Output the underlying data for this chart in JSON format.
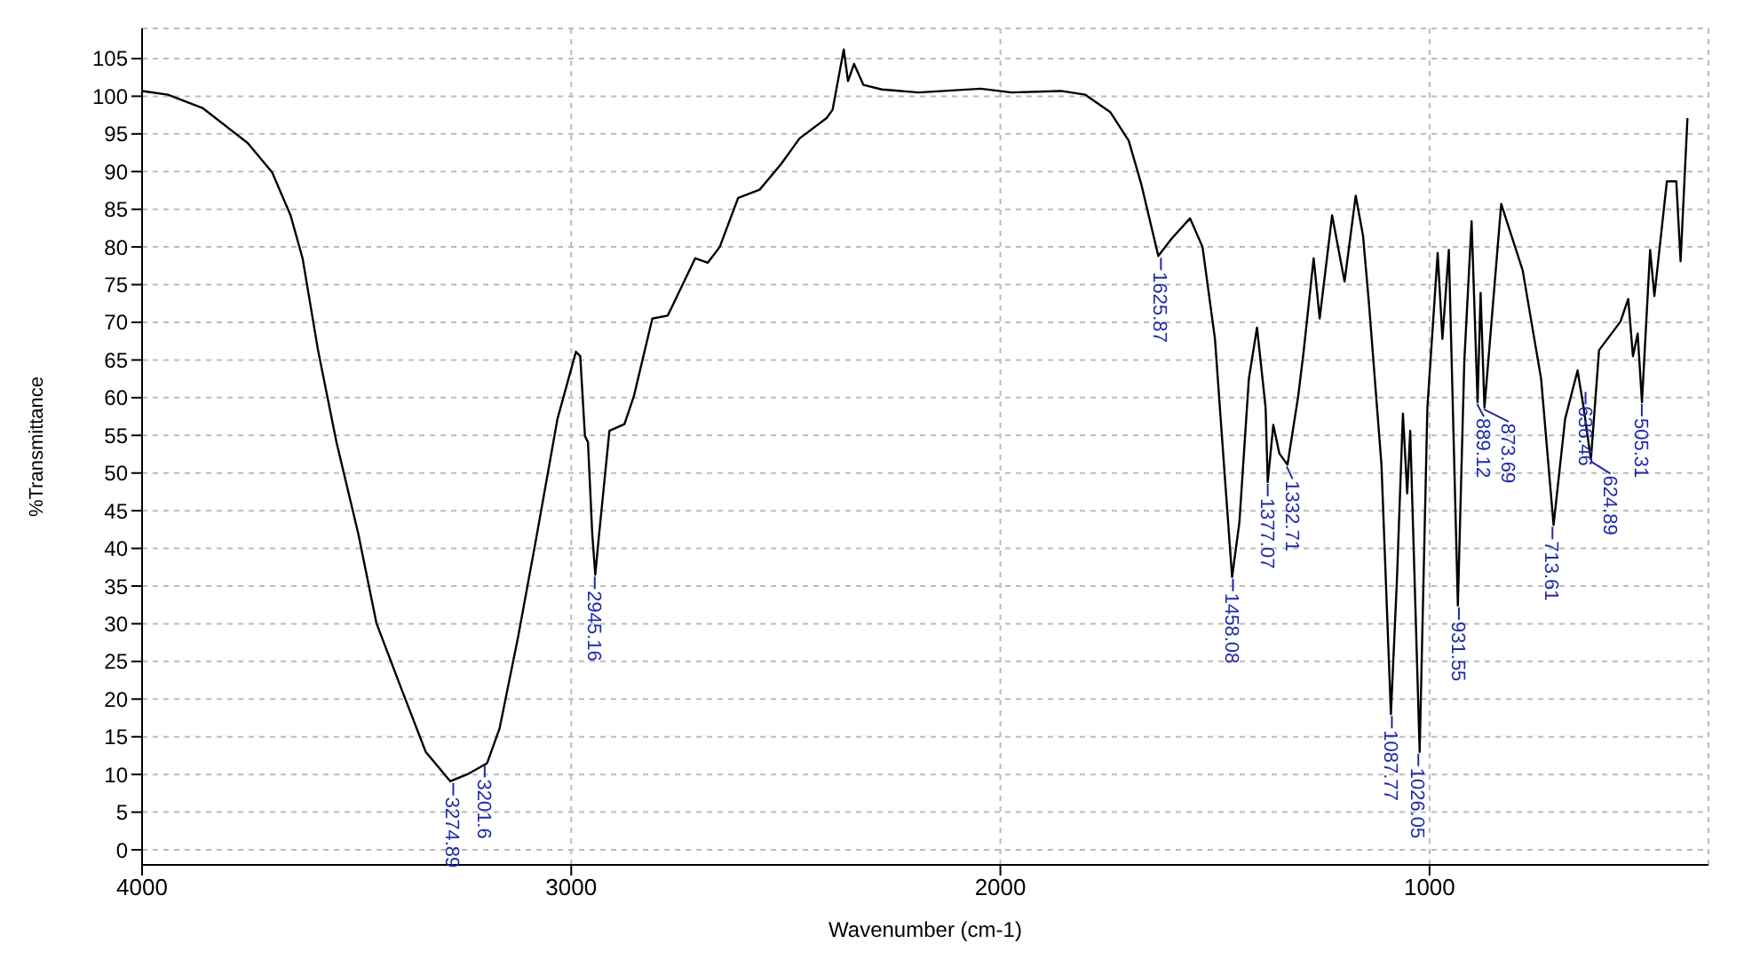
{
  "chart_data": {
    "type": "line",
    "xlabel": "Wavenumber (cm-1)",
    "ylabel": "%Transmittance",
    "xlim": [
      4000,
      350
    ],
    "xticks": [
      4000,
      3000,
      2000,
      1000
    ],
    "ylim": [
      -2,
      109
    ],
    "yticks": [
      0,
      5,
      10,
      15,
      20,
      25,
      30,
      35,
      40,
      45,
      50,
      55,
      60,
      65,
      70,
      75,
      80,
      85,
      90,
      95,
      100,
      105
    ],
    "grid": true,
    "marker": "none",
    "line_style": "solid",
    "x": [
      4000,
      3940,
      3858,
      3754,
      3697,
      3654,
      3626,
      3590,
      3547,
      3496,
      3454,
      3396,
      3339,
      3282,
      3239,
      3196,
      3167,
      3124,
      3082,
      3032,
      2989,
      2979,
      2968,
      2961,
      2951,
      2944,
      2935,
      2911,
      2876,
      2854,
      2811,
      2775,
      2711,
      2682,
      2654,
      2611,
      2561,
      2511,
      2468,
      2405,
      2391,
      2365,
      2355,
      2341,
      2319,
      2276,
      2190,
      2046,
      1974,
      1859,
      1802,
      1744,
      1701,
      1672,
      1632,
      1601,
      1558,
      1529,
      1500,
      1479,
      1460,
      1443,
      1421,
      1402,
      1382,
      1377,
      1364,
      1350,
      1331,
      1306,
      1293,
      1270,
      1256,
      1227,
      1198,
      1172,
      1155,
      1141,
      1112,
      1090,
      1076,
      1062,
      1052,
      1045,
      1023,
      1005,
      981,
      970,
      955,
      934,
      919,
      902,
      888,
      881,
      872,
      833,
      783,
      740,
      711,
      684,
      655,
      641,
      624,
      605,
      555,
      537,
      526,
      515,
      505,
      486,
      476,
      447,
      425,
      415,
      399
    ],
    "series": [
      {
        "color": "#000000",
        "values": [
          100.7,
          100.2,
          98.4,
          93.8,
          89.9,
          84.2,
          78.5,
          66.3,
          54.1,
          41.9,
          30.1,
          21.4,
          13,
          9.1,
          10.1,
          11.5,
          16.1,
          28.2,
          41.2,
          57.2,
          66.1,
          65.5,
          54.9,
          54.1,
          41.9,
          36.5,
          41.9,
          55.6,
          56.5,
          60.2,
          70.5,
          70.9,
          78.5,
          77.9,
          80,
          86.5,
          87.6,
          91,
          94.4,
          97.1,
          98.2,
          106.2,
          102,
          104.3,
          101.5,
          100.9,
          100.5,
          101,
          100.5,
          100.7,
          100.2,
          97.9,
          94.1,
          88.4,
          78.8,
          81.1,
          83.8,
          80,
          67.8,
          51.1,
          36.2,
          43.5,
          62.5,
          69.3,
          58.7,
          48.8,
          56.4,
          52.6,
          51.1,
          60.2,
          66.3,
          78.5,
          70.5,
          84.2,
          75.4,
          86.8,
          81.5,
          72.4,
          51.1,
          18,
          35.8,
          57.9,
          47.3,
          55.6,
          13,
          58.7,
          79.2,
          67.8,
          79.6,
          32.4,
          64.8,
          83.4,
          59.4,
          73.9,
          58.7,
          85.7,
          76.9,
          62.5,
          43.1,
          57.2,
          63.6,
          58.7,
          51.8,
          66.3,
          70.1,
          73.1,
          65.5,
          68.5,
          59.4,
          79.6,
          73.5,
          88.7,
          88.7,
          78.1,
          97.1
        ]
      }
    ],
    "annotations": [
      {
        "text": "3274.89",
        "x": 3274.89,
        "y": 9.1
      },
      {
        "text": "3201.6",
        "x": 3201.6,
        "y": 11.5
      },
      {
        "text": "2945.16",
        "x": 2945.16,
        "y": 36.5
      },
      {
        "text": "1625.87",
        "x": 1625.87,
        "y": 78.8
      },
      {
        "text": "1458.08",
        "x": 1458.08,
        "y": 36.2
      },
      {
        "text": "1377.07",
        "x": 1377.07,
        "y": 48.8
      },
      {
        "text": "1332.71",
        "x": 1332.71,
        "y": 51.1
      },
      {
        "text": "1087.77",
        "x": 1087.77,
        "y": 18
      },
      {
        "text": "1026.05",
        "x": 1026.05,
        "y": 13
      },
      {
        "text": "931.55",
        "x": 931.55,
        "y": 32.4
      },
      {
        "text": "889.12",
        "x": 889.12,
        "y": 59.4
      },
      {
        "text": "873.69",
        "x": 873.69,
        "y": 58.7
      },
      {
        "text": "713.61",
        "x": 713.61,
        "y": 43.1
      },
      {
        "text": "636.46",
        "x": 636.46,
        "y": 61
      },
      {
        "text": "624.89",
        "x": 624.89,
        "y": 51.8
      },
      {
        "text": "505.31",
        "x": 505.31,
        "y": 59.4
      }
    ]
  }
}
